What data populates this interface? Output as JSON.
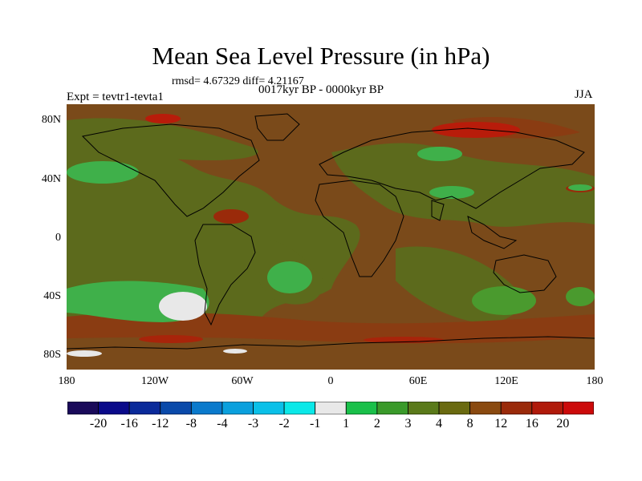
{
  "header": {
    "title": "Mean Sea Level Pressure (in hPa)",
    "stats": "rmsd= 4.67329  diff= 4.21167",
    "left_label": "Expt = tevtr1-tevta1",
    "center_label": "0017kyr BP - 0000kyr BP",
    "right_label": "JJA"
  },
  "map": {
    "lat_labels": [
      "80N",
      "40N",
      "0",
      "40S",
      "80S"
    ],
    "lon_labels": [
      "180",
      "120W",
      "60W",
      "0",
      "60E",
      "120E",
      "180"
    ],
    "colors": {
      "background": "#7a4a1a",
      "olive": "#5a6a1a",
      "light_green": "#3fb04a",
      "mid_green": "#4a8a2a",
      "white": "#e8e8e8",
      "red": "#c01a0a",
      "orange_brown": "#8a3c10"
    }
  },
  "colorbar": {
    "labels": [
      "-20",
      "-16",
      "-12",
      "-8",
      "-4",
      "-3",
      "-2",
      "-1",
      "1",
      "2",
      "3",
      "4",
      "8",
      "12",
      "16",
      "20"
    ],
    "colors": [
      "#1a0a5a",
      "#0a0a8a",
      "#0a2a9a",
      "#0a4aaa",
      "#0a7acc",
      "#0aa0dd",
      "#0ac0e8",
      "#0ae8e8",
      "#e8e8e8",
      "#1ac04a",
      "#3a9a2a",
      "#5a7a1a",
      "#6a6a10",
      "#8a4a10",
      "#9a2a0a",
      "#b01a0a",
      "#cc0a0a"
    ]
  }
}
